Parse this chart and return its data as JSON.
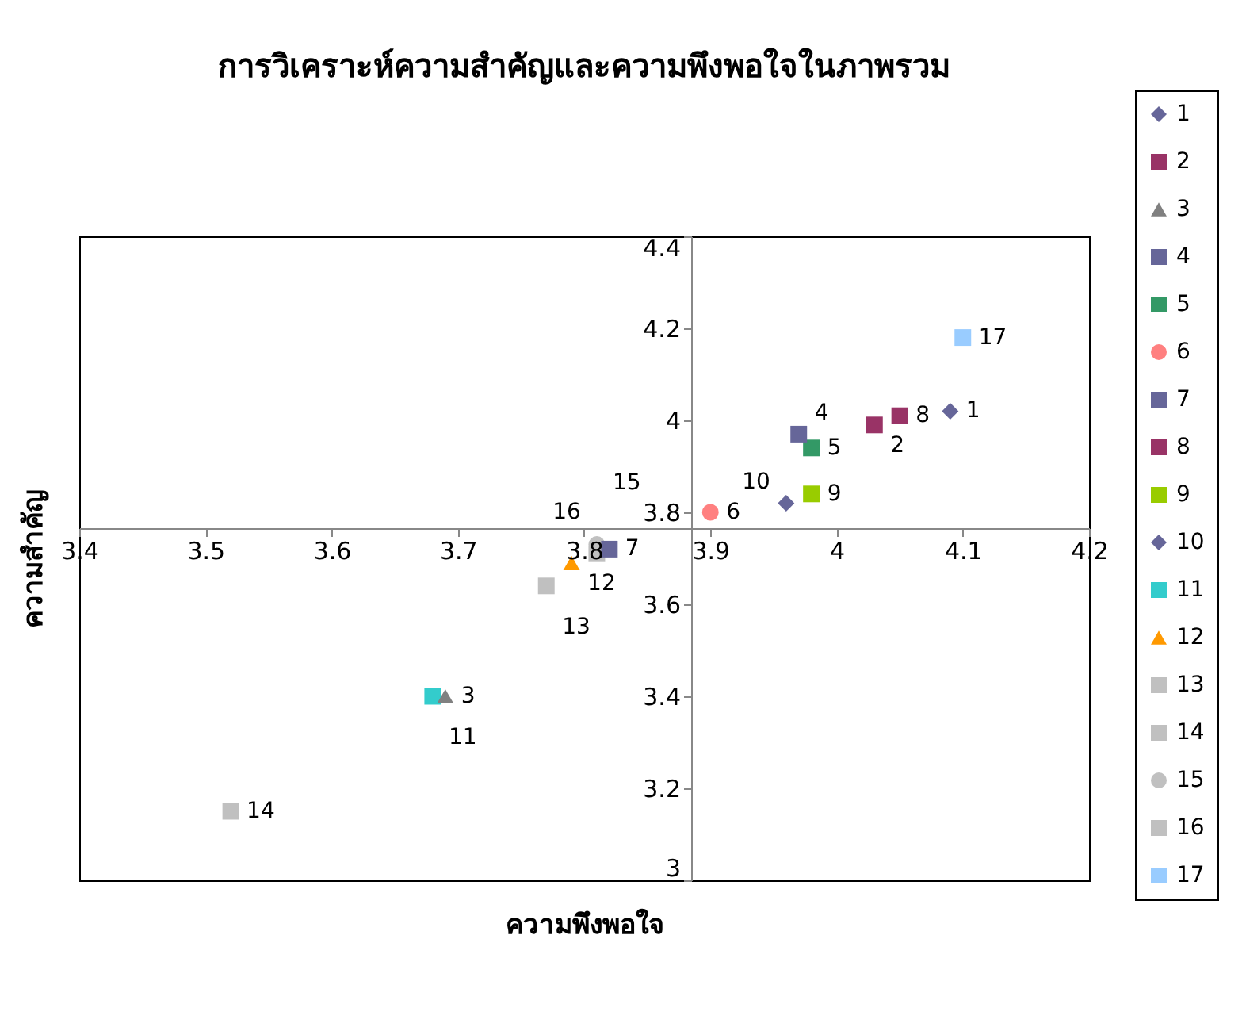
{
  "chart_data": {
    "type": "scatter",
    "title": "การวิเคราะห์ความสำคัญและความพึงพอใจในภาพรวม",
    "xlabel": "ความพึงพอใจ",
    "ylabel": "ความสำคัญ",
    "xlim": [
      3.4,
      4.2
    ],
    "xticks": [
      3.4,
      3.5,
      3.6,
      3.7,
      3.8,
      3.9,
      4,
      4.1,
      4.2
    ],
    "ylim": [
      3,
      4.4
    ],
    "yticks": [
      3,
      3.2,
      3.4,
      3.6,
      3.8,
      4,
      4.2,
      4.4
    ],
    "grid": false,
    "legend": "right",
    "series": [
      {
        "name": "1",
        "color": "#666699",
        "marker": "diamond",
        "x": [
          4.09
        ],
        "values": [
          4.02
        ]
      },
      {
        "name": "2",
        "color": "#993366",
        "marker": "square",
        "x": [
          4.03
        ],
        "values": [
          3.99
        ]
      },
      {
        "name": "3",
        "color": "#808080",
        "marker": "triangle",
        "x": [
          3.69
        ],
        "values": [
          3.4
        ]
      },
      {
        "name": "4",
        "color": "#666699",
        "marker": "square",
        "x": [
          3.97
        ],
        "values": [
          3.97
        ]
      },
      {
        "name": "5",
        "color": "#339966",
        "marker": "square",
        "x": [
          3.98
        ],
        "values": [
          3.94
        ]
      },
      {
        "name": "6",
        "color": "#ff8080",
        "marker": "circle",
        "x": [
          3.9
        ],
        "values": [
          3.8
        ]
      },
      {
        "name": "7",
        "color": "#666699",
        "marker": "square",
        "x": [
          3.82
        ],
        "values": [
          3.72
        ]
      },
      {
        "name": "8",
        "color": "#993366",
        "marker": "square",
        "x": [
          4.05
        ],
        "values": [
          4.01
        ]
      },
      {
        "name": "9",
        "color": "#99cc00",
        "marker": "square",
        "x": [
          3.98
        ],
        "values": [
          3.84
        ]
      },
      {
        "name": "10",
        "color": "#666699",
        "marker": "diamond",
        "x": [
          3.96
        ],
        "values": [
          3.82
        ]
      },
      {
        "name": "11",
        "color": "#33cccc",
        "marker": "square",
        "x": [
          3.68
        ],
        "values": [
          3.4
        ]
      },
      {
        "name": "12",
        "color": "#ff9900",
        "marker": "triangle",
        "x": [
          3.79
        ],
        "values": [
          3.69
        ]
      },
      {
        "name": "13",
        "color": "#c0c0c0",
        "marker": "square",
        "x": [
          3.77
        ],
        "values": [
          3.64
        ]
      },
      {
        "name": "14",
        "color": "#c0c0c0",
        "marker": "square",
        "x": [
          3.52
        ],
        "values": [
          3.15
        ]
      },
      {
        "name": "15",
        "color": "#c0c0c0",
        "marker": "circle",
        "x": [
          3.81
        ],
        "values": [
          3.73
        ]
      },
      {
        "name": "16",
        "color": "#c0c0c0",
        "marker": "square",
        "x": [
          3.81
        ],
        "values": [
          3.71
        ]
      },
      {
        "name": "17",
        "color": "#99ccff",
        "marker": "square",
        "x": [
          4.1
        ],
        "values": [
          4.18
        ]
      }
    ]
  }
}
